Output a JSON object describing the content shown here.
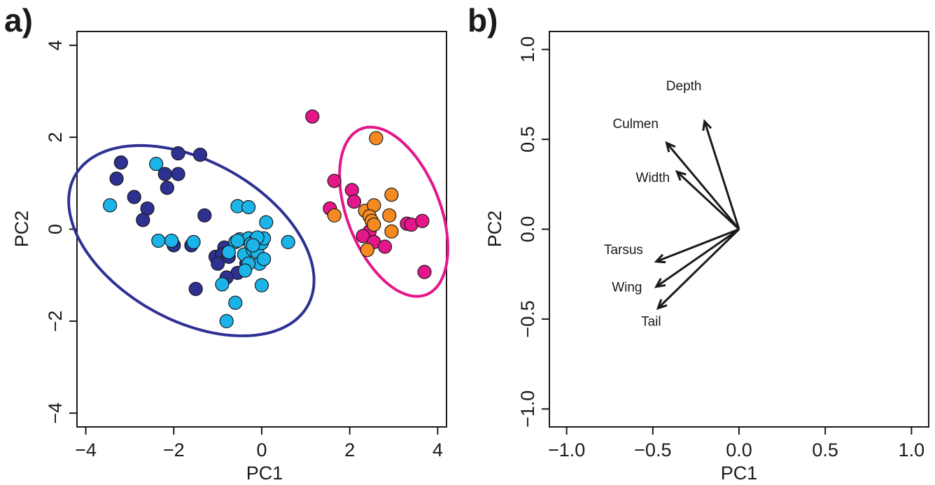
{
  "chart_data": [
    {
      "panel_label": "a)",
      "type": "scatter",
      "xlabel": "PC1",
      "ylabel": "PC2",
      "xlim": [
        -4.2,
        4.2
      ],
      "ylim": [
        -4.3,
        4.3
      ],
      "xticks": [
        -4,
        -2,
        0,
        2,
        4
      ],
      "yticks": [
        -4,
        -2,
        0,
        2,
        4
      ],
      "xtick_labels": [
        "−4",
        "−2",
        "0",
        "2",
        "4"
      ],
      "ytick_labels": [
        "−4",
        "−2",
        "0",
        "2",
        "4"
      ],
      "series": [
        {
          "color": "#2e3192",
          "points": [
            [
              -3.2,
              1.45
            ],
            [
              -3.3,
              1.1
            ],
            [
              -2.9,
              0.7
            ],
            [
              -2.6,
              0.45
            ],
            [
              -2.7,
              0.2
            ],
            [
              -2.2,
              1.2
            ],
            [
              -2.15,
              0.9
            ],
            [
              -1.9,
              1.2
            ],
            [
              -1.9,
              1.65
            ],
            [
              -1.4,
              1.62
            ],
            [
              -1.3,
              0.3
            ],
            [
              -2.0,
              -0.35
            ],
            [
              -1.6,
              -0.35
            ],
            [
              -0.85,
              -0.4
            ],
            [
              -1.05,
              -0.6
            ],
            [
              -0.9,
              -0.55
            ],
            [
              -1.0,
              -0.75
            ],
            [
              -0.75,
              -0.6
            ],
            [
              -0.35,
              -0.75
            ],
            [
              -0.55,
              -0.95
            ],
            [
              -0.8,
              -1.05
            ],
            [
              -1.5,
              -1.3
            ]
          ]
        },
        {
          "color": "#1ab4e8",
          "points": [
            [
              -3.45,
              0.52
            ],
            [
              -2.4,
              1.42
            ],
            [
              -2.35,
              -0.25
            ],
            [
              -2.05,
              -0.25
            ],
            [
              -1.55,
              -0.28
            ],
            [
              -0.55,
              0.5
            ],
            [
              -0.3,
              0.48
            ],
            [
              0.1,
              0.15
            ],
            [
              0.6,
              -0.28
            ],
            [
              -0.6,
              -0.28
            ],
            [
              -0.4,
              -0.55
            ],
            [
              -0.2,
              -0.45
            ],
            [
              -0.5,
              -0.22
            ],
            [
              -0.3,
              -0.2
            ],
            [
              -0.15,
              -0.25
            ],
            [
              -0.1,
              -0.5
            ],
            [
              0.0,
              -0.3
            ],
            [
              -0.25,
              -0.32
            ],
            [
              0.05,
              -0.2
            ],
            [
              -0.1,
              -0.18
            ],
            [
              -0.05,
              -0.75
            ],
            [
              0.05,
              -0.65
            ],
            [
              -0.75,
              -0.5
            ],
            [
              -0.9,
              -1.2
            ],
            [
              0.0,
              -1.22
            ],
            [
              -0.6,
              -1.6
            ],
            [
              -0.8,
              -2.0
            ],
            [
              -0.3,
              -0.75
            ],
            [
              -0.55,
              -0.25
            ],
            [
              -0.2,
              -0.35
            ],
            [
              -0.38,
              -0.9
            ]
          ]
        },
        {
          "color": "#e5168a",
          "points": [
            [
              1.15,
              2.45
            ],
            [
              1.65,
              1.05
            ],
            [
              2.05,
              0.85
            ],
            [
              2.1,
              0.6
            ],
            [
              1.55,
              0.45
            ],
            [
              2.45,
              -0.05
            ],
            [
              2.3,
              -0.15
            ],
            [
              2.55,
              -0.28
            ],
            [
              2.8,
              -0.38
            ],
            [
              3.3,
              0.12
            ],
            [
              3.4,
              0.1
            ],
            [
              3.65,
              0.18
            ],
            [
              3.7,
              -0.93
            ]
          ]
        },
        {
          "color": "#f58a20",
          "points": [
            [
              2.6,
              1.98
            ],
            [
              2.95,
              0.75
            ],
            [
              1.65,
              0.3
            ],
            [
              2.35,
              0.4
            ],
            [
              2.55,
              0.52
            ],
            [
              2.45,
              0.28
            ],
            [
              2.5,
              0.18
            ],
            [
              2.55,
              0.1
            ],
            [
              2.9,
              0.3
            ],
            [
              2.95,
              -0.05
            ],
            [
              2.4,
              -0.45
            ]
          ]
        }
      ],
      "ellipses": [
        {
          "color": "#2e3192",
          "center": [
            -1.6,
            -0.25
          ],
          "semi_major": 3.0,
          "semi_minor": 1.75,
          "angle_deg": -27
        },
        {
          "color": "#e5168a",
          "center": [
            3.0,
            0.38
          ],
          "semi_major": 1.95,
          "semi_minor": 1.05,
          "angle_deg": -67
        }
      ]
    },
    {
      "panel_label": "b)",
      "type": "scatter",
      "xlabel": "PC1",
      "ylabel": "PC2",
      "xlim": [
        -1.1,
        1.1
      ],
      "ylim": [
        -1.1,
        1.1
      ],
      "xticks": [
        -1.0,
        -0.5,
        0.0,
        0.5,
        1.0
      ],
      "yticks": [
        -1.0,
        -0.5,
        0.0,
        0.5,
        1.0
      ],
      "xtick_labels": [
        "−1.0",
        "−0.5",
        "0.0",
        "0.5",
        "1.0"
      ],
      "ytick_labels": [
        "−1.0",
        "−0.5",
        "0.0",
        "0.5",
        "1.0"
      ],
      "vectors": [
        {
          "label": "Depth",
          "x": -0.2,
          "y": 0.6,
          "label_x": -0.32,
          "label_y": 0.8
        },
        {
          "label": "Culmen",
          "x": -0.42,
          "y": 0.48,
          "label_x": -0.6,
          "label_y": 0.59
        },
        {
          "label": "Width",
          "x": -0.36,
          "y": 0.32,
          "label_x": -0.5,
          "label_y": 0.29
        },
        {
          "label": "Tarsus",
          "x": -0.48,
          "y": -0.18,
          "label_x": -0.67,
          "label_y": -0.11
        },
        {
          "label": "Wing",
          "x": -0.48,
          "y": -0.32,
          "label_x": -0.65,
          "label_y": -0.32
        },
        {
          "label": "Tail",
          "x": -0.47,
          "y": -0.44,
          "label_x": -0.51,
          "label_y": -0.51
        }
      ]
    }
  ]
}
